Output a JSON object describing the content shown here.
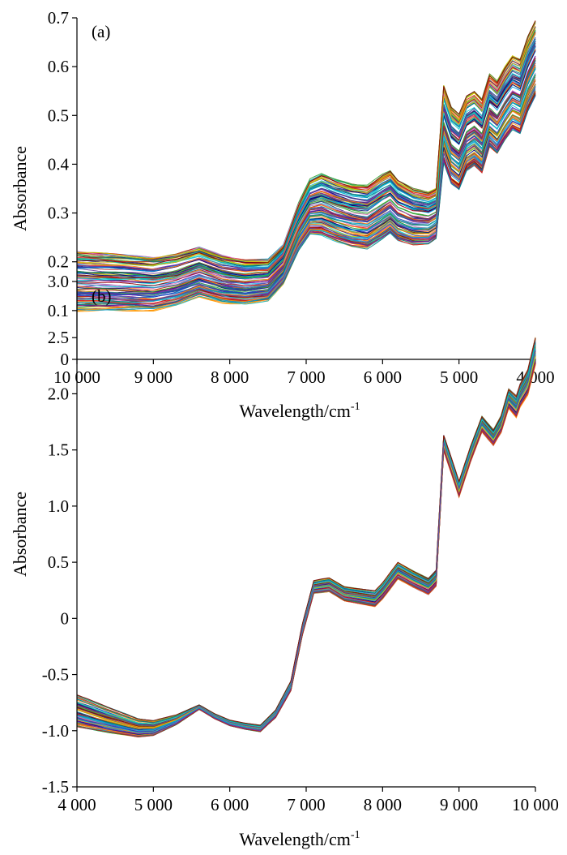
{
  "chart_data": [
    {
      "type": "line",
      "panel_label": "(a)",
      "xlabel": "Wavelength/cm",
      "xlabel_sup": "-1",
      "ylabel": "Absorbance",
      "xlim": [
        10000,
        4000
      ],
      "ylim": [
        0,
        0.7
      ],
      "x_reversed": true,
      "xticks": [
        10000,
        9000,
        8000,
        7000,
        6000,
        5000,
        4000
      ],
      "xtick_labels": [
        "10 000",
        "9 000",
        "8 000",
        "7 000",
        "6 000",
        "5 000",
        "4 000"
      ],
      "yticks": [
        0,
        0.1,
        0.2,
        0.3,
        0.4,
        0.5,
        0.6,
        0.7
      ],
      "ytick_labels": [
        "0",
        "0.1",
        "0.2",
        "0.3",
        "0.4",
        "0.5",
        "0.6",
        "0.7"
      ],
      "grid": false,
      "legend": "none",
      "series_count": 120,
      "representative_spectrum": {
        "x": [
          10000,
          9500,
          9000,
          8700,
          8400,
          8100,
          7800,
          7500,
          7300,
          7100,
          6950,
          6800,
          6600,
          6400,
          6200,
          6000,
          5900,
          5800,
          5600,
          5400,
          5300,
          5200,
          5100,
          5000,
          4900,
          4800,
          4700,
          4600,
          4500,
          4400,
          4300,
          4200,
          4100,
          4000
        ],
        "y": [
          0.165,
          0.162,
          0.158,
          0.166,
          0.182,
          0.167,
          0.16,
          0.163,
          0.195,
          0.275,
          0.318,
          0.325,
          0.312,
          0.302,
          0.298,
          0.318,
          0.326,
          0.308,
          0.292,
          0.286,
          0.294,
          0.505,
          0.458,
          0.442,
          0.478,
          0.486,
          0.468,
          0.518,
          0.502,
          0.528,
          0.548,
          0.538,
          0.582,
          0.612
        ]
      },
      "spread": {
        "x": [
          10000,
          8000,
          7300,
          6800,
          6000,
          5300,
          5200,
          4600,
          4000
        ],
        "lower_offset": [
          -0.065,
          -0.05,
          -0.04,
          -0.07,
          -0.07,
          -0.045,
          -0.1,
          -0.08,
          -0.07
        ],
        "upper_offset": [
          0.055,
          0.045,
          0.04,
          0.055,
          0.06,
          0.055,
          0.055,
          0.065,
          0.08
        ]
      }
    },
    {
      "type": "line",
      "panel_label": "(b)",
      "xlabel": "Wavelength/cm",
      "xlabel_sup": "-1",
      "ylabel": "Absorbance",
      "xlim": [
        4000,
        10000
      ],
      "ylim": [
        -1.5,
        3.0
      ],
      "x_reversed": false,
      "xticks": [
        4000,
        5000,
        6000,
        7000,
        8000,
        9000,
        10000
      ],
      "xtick_labels": [
        "4 000",
        "5 000",
        "6 000",
        "7 000",
        "8 000",
        "9 000",
        "10 000"
      ],
      "yticks": [
        -1.5,
        -1.0,
        -0.5,
        0,
        0.5,
        1.0,
        1.5,
        2.0,
        2.5,
        3.0
      ],
      "ytick_labels": [
        "-1.5",
        "-1.0",
        "-0.5",
        "0",
        "0.5",
        "1.0",
        "1.5",
        "2.0",
        "2.5",
        "3.0"
      ],
      "grid": false,
      "legend": "none",
      "series_count": 120,
      "representative_spectrum": {
        "x": [
          4000,
          4400,
          4800,
          5000,
          5300,
          5600,
          5800,
          6000,
          6200,
          6400,
          6600,
          6800,
          6950,
          7100,
          7300,
          7500,
          7700,
          7900,
          8000,
          8200,
          8400,
          8600,
          8700,
          8800,
          8900,
          9000,
          9150,
          9300,
          9450,
          9550,
          9650,
          9750,
          9800,
          9900,
          10000
        ],
        "y": [
          -0.82,
          -0.9,
          -0.97,
          -0.97,
          -0.9,
          -0.79,
          -0.87,
          -0.93,
          -0.96,
          -0.98,
          -0.85,
          -0.6,
          -0.1,
          0.28,
          0.3,
          0.22,
          0.2,
          0.18,
          0.25,
          0.43,
          0.35,
          0.28,
          0.35,
          1.55,
          1.35,
          1.14,
          1.45,
          1.72,
          1.6,
          1.72,
          1.95,
          1.88,
          1.98,
          2.1,
          2.38
        ]
      },
      "spread": {
        "x": [
          4000,
          5000,
          5600,
          6500,
          7200,
          8200,
          8800,
          9500,
          10000
        ],
        "lower_offset": [
          -0.14,
          -0.07,
          -0.02,
          -0.03,
          -0.06,
          -0.08,
          -0.06,
          -0.06,
          -0.12
        ],
        "upper_offset": [
          0.14,
          0.06,
          0.02,
          0.03,
          0.06,
          0.07,
          0.08,
          0.08,
          0.12
        ]
      }
    }
  ],
  "palette": [
    "#e41a1c",
    "#1f3fbf",
    "#2ca02c",
    "#7b1fa2",
    "#ff9900",
    "#17becf",
    "#b22222",
    "#008080",
    "#d4c400",
    "#8b0000",
    "#00a0e0",
    "#6a3d9a",
    "#4daf4a",
    "#e377c2",
    "#1a237e",
    "#ff7f0e",
    "#000080",
    "#00ced1"
  ]
}
